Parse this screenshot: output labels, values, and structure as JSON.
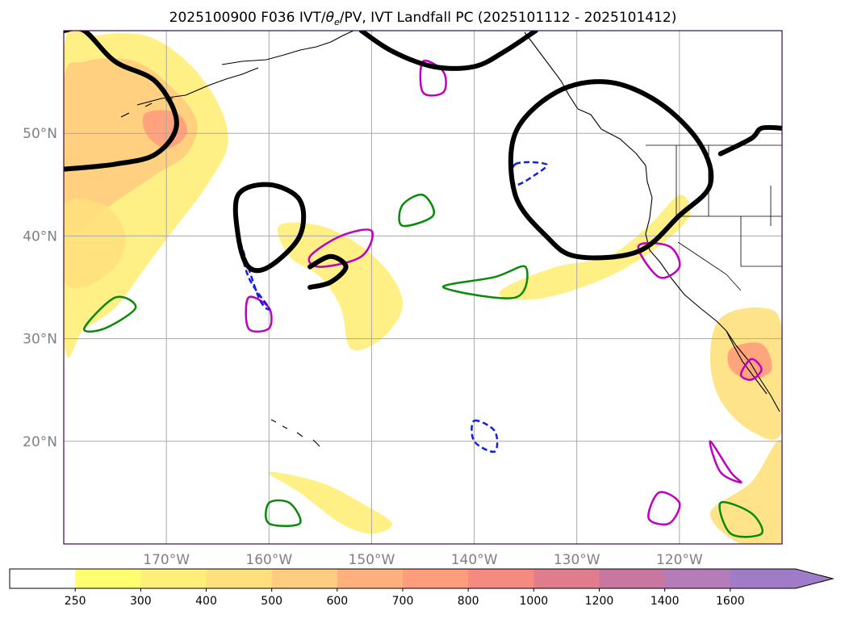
{
  "chart_data": {
    "type": "map",
    "title": "2025100900 F036 IVT/θe/PV, IVT Landfall PC (2025101112 - 2025101412)",
    "title_parts": {
      "before": "2025100900 F036 IVT/",
      "theta": "θ",
      "sub": "e",
      "after": "/PV, IVT Landfall PC (2025101112 - 2025101412)"
    },
    "lon_range": [
      -180,
      -110
    ],
    "lat_range": [
      10,
      60
    ],
    "lon_ticks": [
      {
        "value": -170,
        "label": "170°W"
      },
      {
        "value": -160,
        "label": "160°W"
      },
      {
        "value": -150,
        "label": "150°W"
      },
      {
        "value": -140,
        "label": "140°W"
      },
      {
        "value": -130,
        "label": "130°W"
      },
      {
        "value": -120,
        "label": "120°W"
      }
    ],
    "lat_ticks": [
      {
        "value": 50,
        "label": "50°N"
      },
      {
        "value": 40,
        "label": "40°N"
      },
      {
        "value": 30,
        "label": "30°N"
      },
      {
        "value": 20,
        "label": "20°N"
      }
    ],
    "grid": true,
    "colorbar": {
      "levels": [
        "250",
        "300",
        "400",
        "500",
        "600",
        "700",
        "800",
        "1000",
        "1200",
        "1400",
        "1600"
      ],
      "colors": [
        "#ffffff",
        "#ffff70",
        "#ffee78",
        "#ffe07c",
        "#ffcc80",
        "#ffb07c",
        "#ff9c7c",
        "#f58a80",
        "#e07c8c",
        "#c878a0",
        "#b47cb8",
        "#a07cc8"
      ],
      "extend": "max"
    },
    "ivt_regions": [
      {
        "name": "gulf-of-alaska-plume",
        "level": 300,
        "points": [
          [
            -180,
            58
          ],
          [
            -177,
            59.5
          ],
          [
            -172,
            59.5
          ],
          [
            -168,
            57
          ],
          [
            -165,
            53
          ],
          [
            -164,
            49
          ],
          [
            -166,
            45
          ],
          [
            -169,
            41
          ],
          [
            -172,
            37
          ],
          [
            -175,
            33
          ],
          [
            -178,
            31
          ],
          [
            -180,
            30
          ]
        ]
      },
      {
        "name": "alaska-core",
        "level": 500,
        "points": [
          [
            -178,
            57
          ],
          [
            -173,
            57
          ],
          [
            -169,
            54
          ],
          [
            -167,
            51
          ],
          [
            -168,
            48
          ],
          [
            -171,
            46
          ],
          [
            -174,
            44
          ],
          [
            -177,
            42
          ],
          [
            -180,
            41
          ],
          [
            -180,
            55
          ]
        ]
      },
      {
        "name": "alaska-inner",
        "level": 700,
        "points": [
          [
            -172,
            52
          ],
          [
            -169,
            52
          ],
          [
            -168,
            50
          ],
          [
            -170,
            48.5
          ],
          [
            -172,
            50
          ]
        ]
      },
      {
        "name": "west-band",
        "level": 400,
        "points": [
          [
            -180,
            43
          ],
          [
            -176,
            43
          ],
          [
            -174,
            40
          ],
          [
            -175,
            37
          ],
          [
            -178,
            35
          ],
          [
            -180,
            36
          ]
        ]
      },
      {
        "name": "central-filament",
        "level": 300,
        "points": [
          [
            -159,
            41
          ],
          [
            -155,
            41
          ],
          [
            -151,
            39
          ],
          [
            -148,
            36
          ],
          [
            -147,
            33
          ],
          [
            -149,
            30
          ],
          [
            -152,
            29
          ],
          [
            -153,
            33
          ],
          [
            -155,
            36
          ],
          [
            -158,
            38
          ]
        ]
      },
      {
        "name": "mid-lat-ar",
        "level": 300,
        "points": [
          [
            -137,
            35
          ],
          [
            -132,
            37
          ],
          [
            -127,
            38
          ],
          [
            -123,
            41
          ],
          [
            -120,
            44
          ],
          [
            -119,
            42
          ],
          [
            -122,
            39
          ],
          [
            -127,
            36
          ],
          [
            -133,
            34
          ],
          [
            -137,
            34
          ]
        ]
      },
      {
        "name": "baja-plume",
        "level": 400,
        "points": [
          [
            -116,
            32
          ],
          [
            -112,
            33
          ],
          [
            -110,
            31
          ],
          [
            -110,
            21
          ],
          [
            -113,
            21
          ],
          [
            -116,
            24
          ],
          [
            -117,
            28
          ]
        ]
      },
      {
        "name": "baja-core",
        "level": 700,
        "points": [
          [
            -115,
            29
          ],
          [
            -112,
            29.5
          ],
          [
            -111,
            27
          ],
          [
            -113,
            26
          ],
          [
            -115,
            27
          ]
        ]
      },
      {
        "name": "subtropical-plume",
        "level": 300,
        "points": [
          [
            -160,
            17
          ],
          [
            -157,
            15
          ],
          [
            -153,
            12
          ],
          [
            -150,
            11
          ],
          [
            -148,
            12
          ],
          [
            -151,
            14
          ],
          [
            -155,
            16
          ]
        ]
      },
      {
        "name": "se-corner",
        "level": 400,
        "points": [
          [
            -117,
            13
          ],
          [
            -113,
            16
          ],
          [
            -110,
            20
          ],
          [
            -110,
            10
          ],
          [
            -114,
            10
          ]
        ]
      }
    ],
    "pv_contours": [
      {
        "name": "aleutian-low",
        "points": [
          [
            -180,
            46.5
          ],
          [
            -175,
            47
          ],
          [
            -171,
            48
          ],
          [
            -169,
            51
          ],
          [
            -171,
            55
          ],
          [
            -175,
            57
          ],
          [
            -178,
            60
          ],
          [
            -180,
            60
          ]
        ]
      },
      {
        "name": "gulf-low-top",
        "points": [
          [
            -151,
            60
          ],
          [
            -148,
            58
          ],
          [
            -144,
            56.5
          ],
          [
            -140,
            56.5
          ],
          [
            -137,
            58
          ],
          [
            -134,
            60
          ]
        ]
      },
      {
        "name": "pacific-nw-low",
        "points": [
          [
            -130,
            38
          ],
          [
            -124,
            38.5
          ],
          [
            -120,
            42
          ],
          [
            -117,
            45
          ],
          [
            -118,
            49
          ],
          [
            -122,
            53
          ],
          [
            -127,
            55
          ],
          [
            -132,
            54
          ],
          [
            -136,
            50
          ],
          [
            -136,
            44
          ],
          [
            -133,
            40
          ],
          [
            -130,
            38
          ]
        ]
      },
      {
        "name": "cutoff-low-1",
        "points": [
          [
            -162,
            37
          ],
          [
            -160,
            37
          ],
          [
            -157,
            40
          ],
          [
            -157,
            43.5
          ],
          [
            -160,
            45
          ],
          [
            -163,
            44
          ],
          [
            -163,
            40
          ],
          [
            -162,
            37
          ]
        ]
      },
      {
        "name": "cutoff-low-2",
        "points": [
          [
            -156,
            35
          ],
          [
            -154,
            35.5
          ],
          [
            -152.5,
            37
          ],
          [
            -154,
            38
          ],
          [
            -156,
            37
          ]
        ]
      },
      {
        "name": "nw-canada",
        "points": [
          [
            -116,
            48
          ],
          [
            -113,
            49.5
          ],
          [
            -112,
            50.5
          ],
          [
            -110,
            50.5
          ]
        ]
      }
    ],
    "theta_e_contours": [
      [
        [
          -156,
          38
        ],
        [
          -153,
          40
        ],
        [
          -150,
          40.5
        ],
        [
          -151,
          38
        ],
        [
          -155,
          37
        ]
      ],
      [
        [
          -162,
          34
        ],
        [
          -160,
          33
        ],
        [
          -160,
          31
        ],
        [
          -162,
          31
        ]
      ],
      [
        [
          -145,
          57
        ],
        [
          -143,
          56
        ],
        [
          -143,
          54
        ],
        [
          -145,
          54
        ]
      ],
      [
        [
          -124,
          39
        ],
        [
          -121,
          39
        ],
        [
          -120,
          37
        ],
        [
          -122,
          36
        ]
      ],
      [
        [
          -113,
          28
        ],
        [
          -112,
          27
        ],
        [
          -113,
          26
        ],
        [
          -114,
          26.5
        ]
      ],
      [
        [
          -117,
          20
        ],
        [
          -115,
          17
        ],
        [
          -114,
          16
        ],
        [
          -116,
          17
        ]
      ],
      [
        [
          -122,
          15
        ],
        [
          -120,
          14
        ],
        [
          -121,
          12
        ],
        [
          -123,
          12.5
        ]
      ]
    ],
    "green_contours": [
      [
        [
          -178,
          31
        ],
        [
          -175,
          34
        ],
        [
          -173,
          33
        ],
        [
          -176,
          31
        ]
      ],
      [
        [
          -143,
          35
        ],
        [
          -138,
          36
        ],
        [
          -135,
          37
        ],
        [
          -136,
          34
        ]
      ],
      [
        [
          -147,
          43
        ],
        [
          -145,
          44
        ],
        [
          -144,
          42
        ],
        [
          -147,
          41
        ]
      ],
      [
        [
          -160,
          14
        ],
        [
          -158,
          14
        ],
        [
          -157,
          12
        ],
        [
          -160,
          12
        ]
      ],
      [
        [
          -116,
          14
        ],
        [
          -113,
          13
        ],
        [
          -112,
          11
        ],
        [
          -115,
          11
        ]
      ]
    ],
    "blue_dashed_contours": [
      [
        [
          -163,
          40
        ],
        [
          -162,
          36
        ],
        [
          -160,
          33
        ],
        [
          -161,
          34
        ]
      ],
      [
        [
          -140,
          22
        ],
        [
          -138,
          21
        ],
        [
          -138,
          19
        ],
        [
          -140,
          20
        ]
      ],
      [
        [
          -136,
          47
        ],
        [
          -133,
          47
        ],
        [
          -134,
          46
        ],
        [
          -136,
          45
        ]
      ]
    ]
  }
}
